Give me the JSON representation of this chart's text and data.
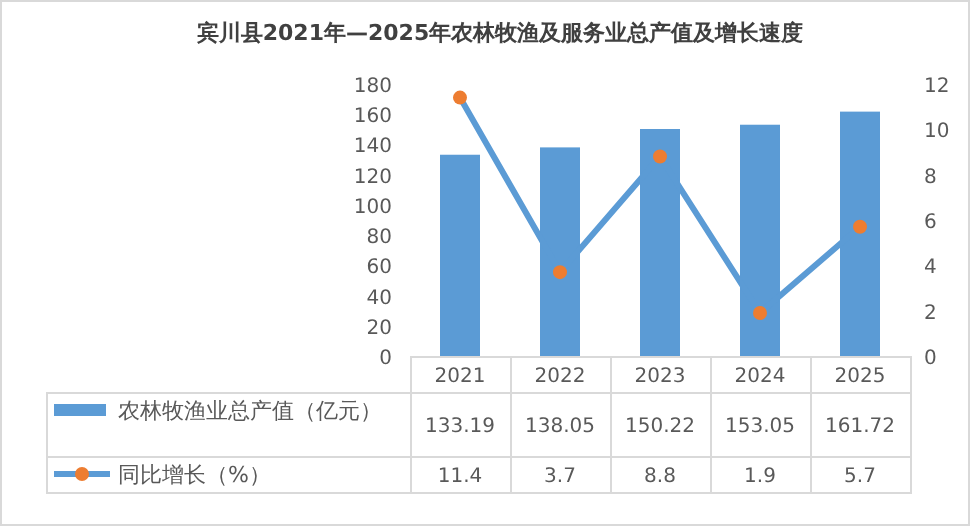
{
  "chart_data": {
    "type": "bar",
    "title": "宾川县2021年—2025年农林牧渔及服务业总产值及增长速度",
    "categories": [
      "2021",
      "2022",
      "2023",
      "2024",
      "2025"
    ],
    "series": [
      {
        "name": "农林牧渔业总产值（亿元）",
        "color": "#5b9bd5",
        "values": [
          133.19,
          138.05,
          150.22,
          153.05,
          161.72
        ]
      },
      {
        "name": "同比增长（%）",
        "type": "line",
        "axis": "y2",
        "color": "#5b9bd5",
        "marker": "circle",
        "values": [
          11.4,
          3.7,
          8.8,
          1.9,
          5.7
        ]
      }
    ],
    "ylim": [
      0,
      180
    ],
    "yticks": [
      0,
      20,
      40,
      60,
      80,
      100,
      120,
      140,
      160,
      180
    ],
    "y2lim": [
      0,
      12
    ],
    "y2ticks": [
      0,
      2,
      4,
      6,
      8,
      10,
      12
    ],
    "data_labels": true,
    "legend": "bottom",
    "grid": false
  }
}
